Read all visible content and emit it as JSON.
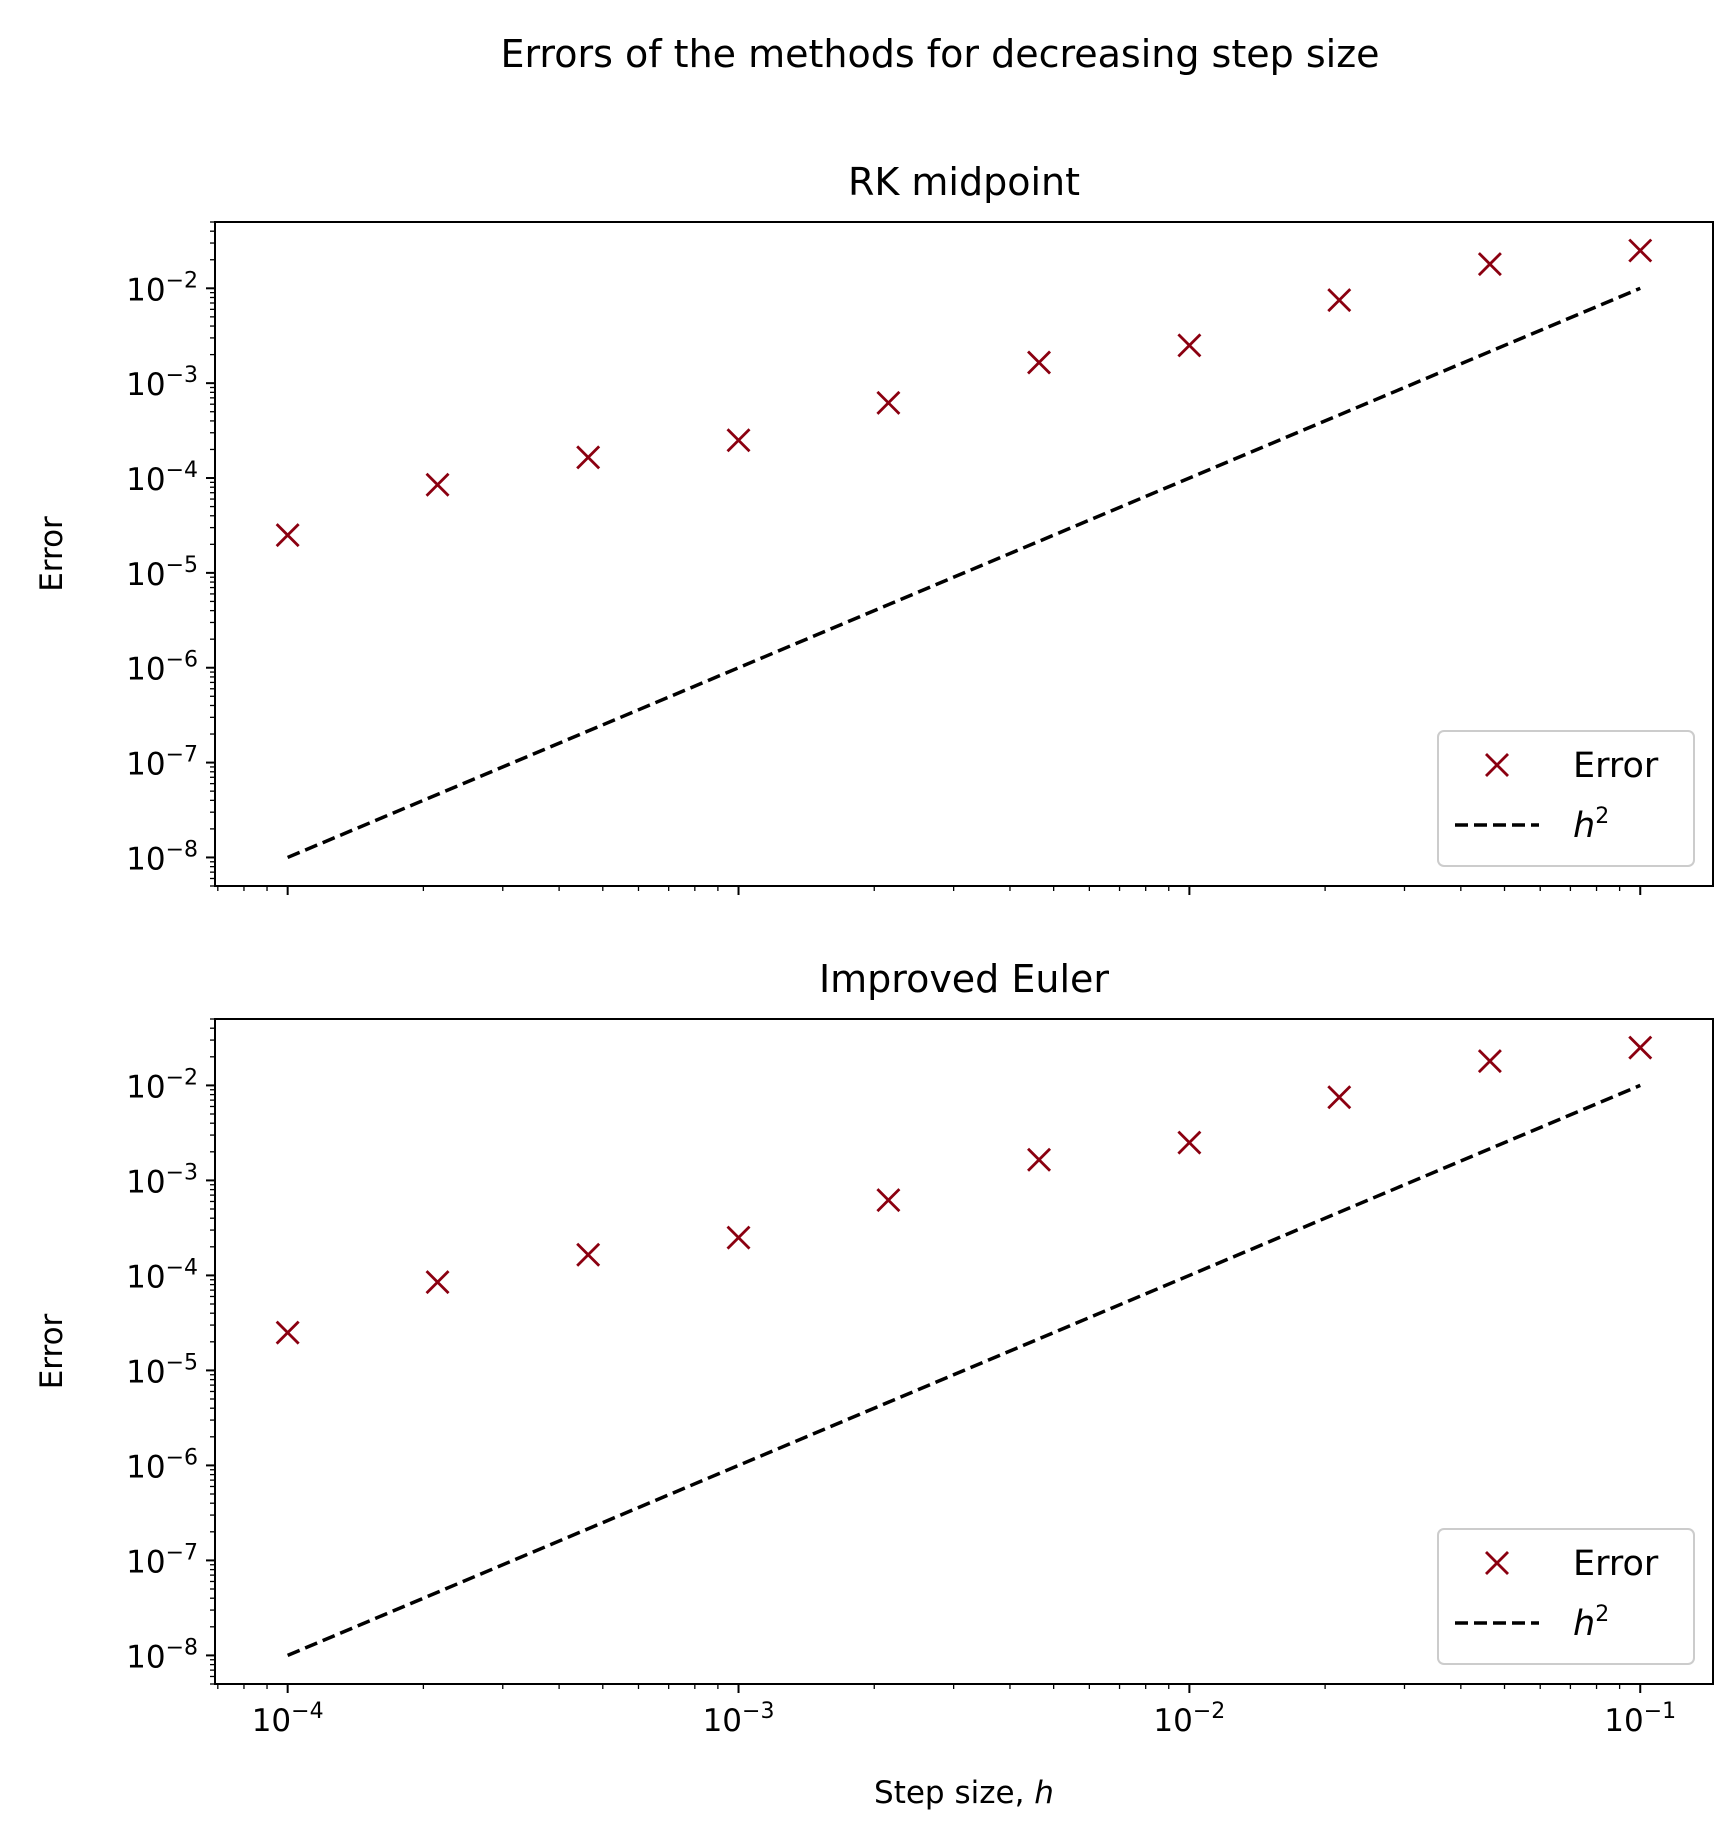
{
  "figure_title": "Errors of the methods for decreasing step size",
  "chart_data": [
    {
      "type": "scatter",
      "title": "RK midpoint",
      "xlabel": "",
      "ylabel": "Error",
      "xscale": "log",
      "yscale": "log",
      "xlim": [
        6.9e-05,
        0.145
      ],
      "ylim": [
        5e-09,
        0.05
      ],
      "grid": false,
      "legend_position": "lower right",
      "x_tick_labels_visible": false,
      "x_ticks": [
        "10^-4",
        "10^-3",
        "10^-2",
        "10^-1"
      ],
      "y_ticks": [
        "10^-8",
        "10^-7",
        "10^-6",
        "10^-5",
        "10^-4",
        "10^-3",
        "10^-2"
      ],
      "series": [
        {
          "name": "Error",
          "marker": "x",
          "color": "#8b0010",
          "x": [
            0.0001,
            0.000215,
            0.000464,
            0.001,
            0.00215,
            0.00464,
            0.01,
            0.0215,
            0.0464,
            0.1
          ],
          "y": [
            2.5e-05,
            8.5e-05,
            0.000165,
            0.00025,
            0.00062,
            0.00165,
            0.0025,
            0.0075,
            0.018,
            0.025
          ]
        },
        {
          "name": "h^2",
          "line": "dashed",
          "color": "#000000",
          "x": [
            0.0001,
            0.1
          ],
          "y": [
            1e-08,
            0.01
          ]
        }
      ]
    },
    {
      "type": "scatter",
      "title": "Improved Euler",
      "xlabel": "Step size, h",
      "ylabel": "Error",
      "xscale": "log",
      "yscale": "log",
      "xlim": [
        6.9e-05,
        0.145
      ],
      "ylim": [
        5e-09,
        0.05
      ],
      "grid": false,
      "legend_position": "lower right",
      "x_tick_labels_visible": true,
      "x_ticks": [
        "10^-4",
        "10^-3",
        "10^-2",
        "10^-1"
      ],
      "y_ticks": [
        "10^-8",
        "10^-7",
        "10^-6",
        "10^-5",
        "10^-4",
        "10^-3",
        "10^-2"
      ],
      "series": [
        {
          "name": "Error",
          "marker": "x",
          "color": "#8b0010",
          "x": [
            0.0001,
            0.000215,
            0.000464,
            0.001,
            0.00215,
            0.00464,
            0.01,
            0.0215,
            0.0464,
            0.1
          ],
          "y": [
            2.5e-05,
            8.5e-05,
            0.000165,
            0.00025,
            0.00062,
            0.00165,
            0.0025,
            0.0075,
            0.018,
            0.025
          ]
        },
        {
          "name": "h^2",
          "line": "dashed",
          "color": "#000000",
          "x": [
            0.0001,
            0.1
          ],
          "y": [
            1e-08,
            0.01
          ]
        }
      ]
    }
  ]
}
